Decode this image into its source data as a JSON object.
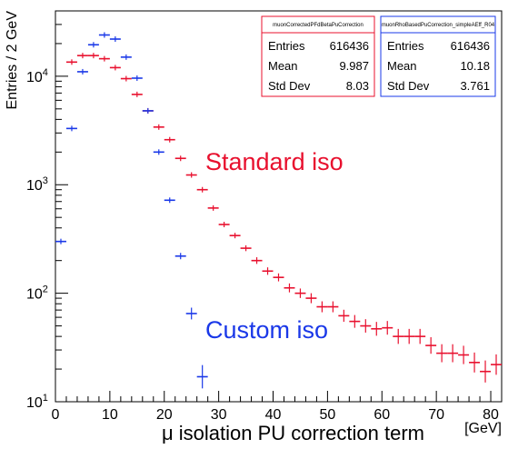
{
  "chart_data": {
    "type": "scatter",
    "xlabel": "μ isolation PU correction term",
    "xunit": "[GeV]",
    "ylabel": "Entries / 2 GeV",
    "xlim": [
      0,
      82
    ],
    "ylim": [
      10,
      40000
    ],
    "ylog": true,
    "x_ticks": [
      "0",
      "10",
      "20",
      "30",
      "40",
      "50",
      "60",
      "70",
      "80"
    ],
    "y_ticks": [
      {
        "value": 10,
        "base": "10",
        "exp": "1"
      },
      {
        "value": 100,
        "base": "10",
        "exp": "2"
      },
      {
        "value": 1000,
        "base": "10",
        "exp": "3"
      },
      {
        "value": 10000,
        "base": "10",
        "exp": "4"
      }
    ],
    "grid": false,
    "series": [
      {
        "name": "Standard iso",
        "color": "#e8102e",
        "x": [
          3,
          5,
          7,
          9,
          11,
          13,
          15,
          17,
          19,
          21,
          23,
          25,
          27,
          29,
          31,
          33,
          35,
          37,
          39,
          41,
          43,
          45,
          47,
          49,
          51,
          53,
          55,
          57,
          59,
          61,
          63,
          65,
          67,
          69,
          71,
          73,
          75,
          77,
          79,
          81
        ],
        "y": [
          13500,
          15500,
          15500,
          14500,
          12000,
          9500,
          6800,
          4800,
          3400,
          2600,
          1750,
          1230,
          900,
          610,
          430,
          340,
          260,
          200,
          160,
          140,
          112,
          100,
          90,
          75,
          75,
          62,
          55,
          50,
          47,
          48,
          40,
          40,
          40,
          33,
          28,
          28,
          27,
          23,
          19,
          22
        ]
      },
      {
        "name": "Custom iso",
        "color": "#1a38e8",
        "x": [
          1,
          3,
          5,
          7,
          9,
          11,
          13,
          15,
          17,
          19,
          21,
          23,
          25,
          27
        ],
        "y": [
          300,
          3300,
          11000,
          19500,
          24000,
          22000,
          15000,
          9600,
          4800,
          2000,
          720,
          220,
          65,
          17
        ]
      }
    ],
    "stats_boxes": [
      {
        "title": "muonCorrectedPFdBetaPuCorrection",
        "color": "#e8102e",
        "rows": [
          [
            "Entries",
            "616436"
          ],
          [
            "Mean",
            "9.987"
          ],
          [
            "Std Dev",
            "8.03"
          ]
        ]
      },
      {
        "title": "muonRhoBasedPuCorrection_simpleAEff_R04",
        "color": "#1a38e8",
        "rows": [
          [
            "Entries",
            "616436"
          ],
          [
            "Mean",
            "10.18"
          ],
          [
            "Std Dev",
            "3.761"
          ]
        ]
      }
    ],
    "annotations": [
      {
        "text": "Standard iso",
        "color": "#e8102e"
      },
      {
        "text": "Custom iso",
        "color": "#1a38e8"
      }
    ]
  }
}
